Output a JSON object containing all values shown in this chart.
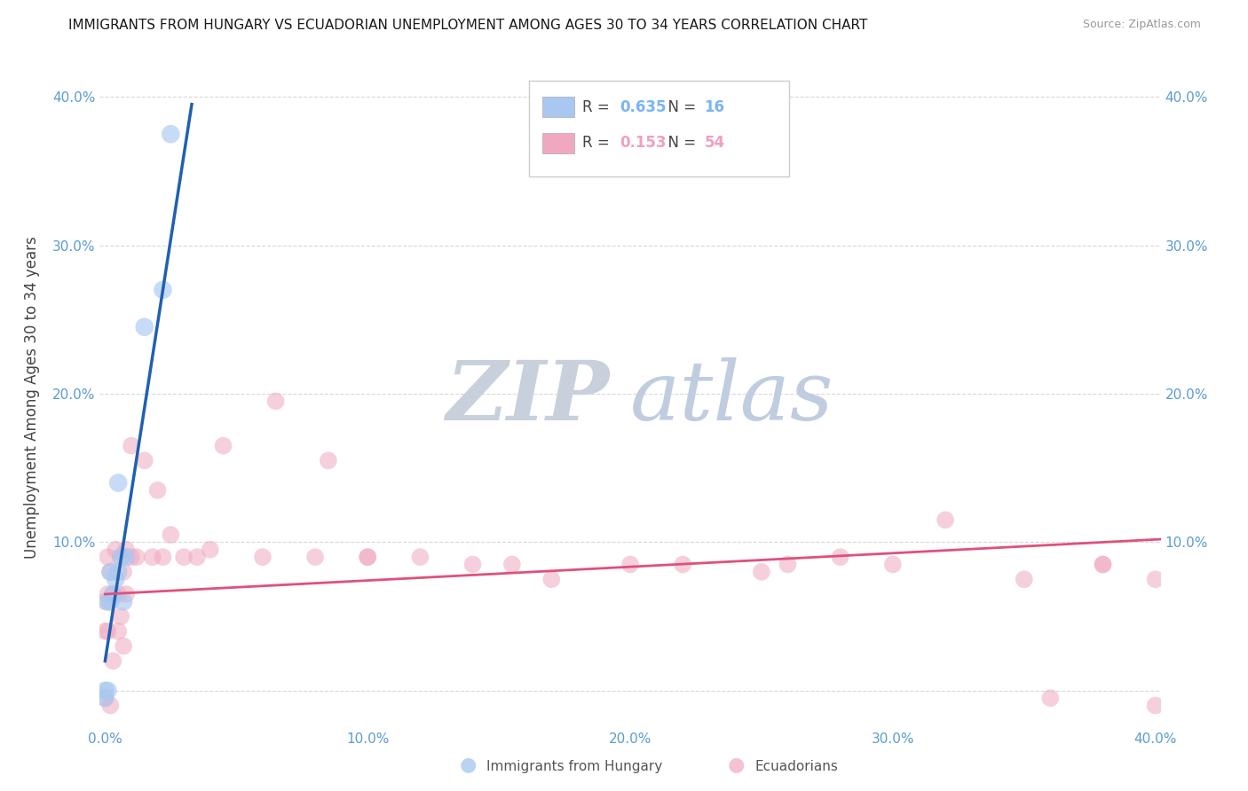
{
  "title": "IMMIGRANTS FROM HUNGARY VS ECUADORIAN UNEMPLOYMENT AMONG AGES 30 TO 34 YEARS CORRELATION CHART",
  "source": "Source: ZipAtlas.com",
  "ylabel": "Unemployment Among Ages 30 to 34 years",
  "xlim": [
    -0.002,
    0.402
  ],
  "ylim": [
    -0.025,
    0.42
  ],
  "xticks": [
    0.0,
    0.1,
    0.2,
    0.3,
    0.4
  ],
  "yticks": [
    0.0,
    0.1,
    0.2,
    0.3,
    0.4
  ],
  "xtick_labels": [
    "0.0%",
    "10.0%",
    "20.0%",
    "30.0%",
    "40.0%"
  ],
  "ytick_labels_left": [
    "",
    "10.0%",
    "20.0%",
    "30.0%",
    "40.0%"
  ],
  "ytick_labels_right": [
    "",
    "10.0%",
    "20.0%",
    "30.0%",
    "40.0%"
  ],
  "hungary_scatter_x": [
    0.0,
    0.0,
    0.001,
    0.001,
    0.002,
    0.002,
    0.003,
    0.004,
    0.005,
    0.005,
    0.006,
    0.007,
    0.008,
    0.015,
    0.022,
    0.025
  ],
  "hungary_scatter_y": [
    0.0,
    -0.005,
    0.0,
    0.06,
    0.06,
    0.08,
    0.065,
    0.075,
    0.08,
    0.14,
    0.09,
    0.06,
    0.09,
    0.245,
    0.27,
    0.375
  ],
  "ecuador_scatter_x": [
    0.0,
    0.0,
    0.0,
    0.001,
    0.001,
    0.001,
    0.002,
    0.002,
    0.003,
    0.003,
    0.004,
    0.005,
    0.005,
    0.006,
    0.006,
    0.007,
    0.007,
    0.008,
    0.008,
    0.01,
    0.01,
    0.012,
    0.015,
    0.018,
    0.02,
    0.022,
    0.025,
    0.03,
    0.035,
    0.04,
    0.045,
    0.06,
    0.065,
    0.08,
    0.085,
    0.1,
    0.1,
    0.12,
    0.14,
    0.155,
    0.17,
    0.2,
    0.22,
    0.25,
    0.26,
    0.28,
    0.3,
    0.32,
    0.35,
    0.36,
    0.38,
    0.38,
    0.4,
    0.4
  ],
  "ecuador_scatter_y": [
    0.06,
    0.04,
    -0.005,
    0.09,
    0.065,
    0.04,
    0.08,
    -0.01,
    0.065,
    0.02,
    0.095,
    0.04,
    0.065,
    0.09,
    0.05,
    0.08,
    0.03,
    0.095,
    0.065,
    0.165,
    0.09,
    0.09,
    0.155,
    0.09,
    0.135,
    0.09,
    0.105,
    0.09,
    0.09,
    0.095,
    0.165,
    0.09,
    0.195,
    0.09,
    0.155,
    0.09,
    0.09,
    0.09,
    0.085,
    0.085,
    0.075,
    0.085,
    0.085,
    0.08,
    0.085,
    0.09,
    0.085,
    0.115,
    0.075,
    -0.005,
    0.085,
    0.085,
    0.075,
    -0.01
  ],
  "hungary_line_x": [
    0.0,
    0.033
  ],
  "hungary_line_y": [
    0.02,
    0.395
  ],
  "ecuador_line_x": [
    0.0,
    0.402
  ],
  "ecuador_line_y": [
    0.065,
    0.102
  ],
  "hungary_color": "#a8c8f0",
  "ecuador_color": "#f0a8c0",
  "hungary_line_color": "#2060b0",
  "ecuador_line_color": "#e0507a",
  "watermark_zip": "ZIP",
  "watermark_atlas": "atlas",
  "watermark_color_zip": "#c8d0dc",
  "watermark_color_atlas": "#c0cce0",
  "background_color": "#ffffff",
  "grid_color": "#d8d8d8",
  "title_color": "#1a1a1a",
  "axis_label_color": "#444444",
  "tick_label_color": "#5b9bd5",
  "legend_r1": "R = ",
  "legend_v1": "0.635",
  "legend_n1_label": "N = ",
  "legend_n1_val": "16",
  "legend_r2": "R = ",
  "legend_v2": "0.153",
  "legend_n2_label": "N = ",
  "legend_n2_val": "54",
  "legend_color1": "#7ab4f5",
  "legend_color2": "#f0a0c0",
  "bottom_legend_hungary": "Immigrants from Hungary",
  "bottom_legend_ecuador": "Ecuadorians"
}
